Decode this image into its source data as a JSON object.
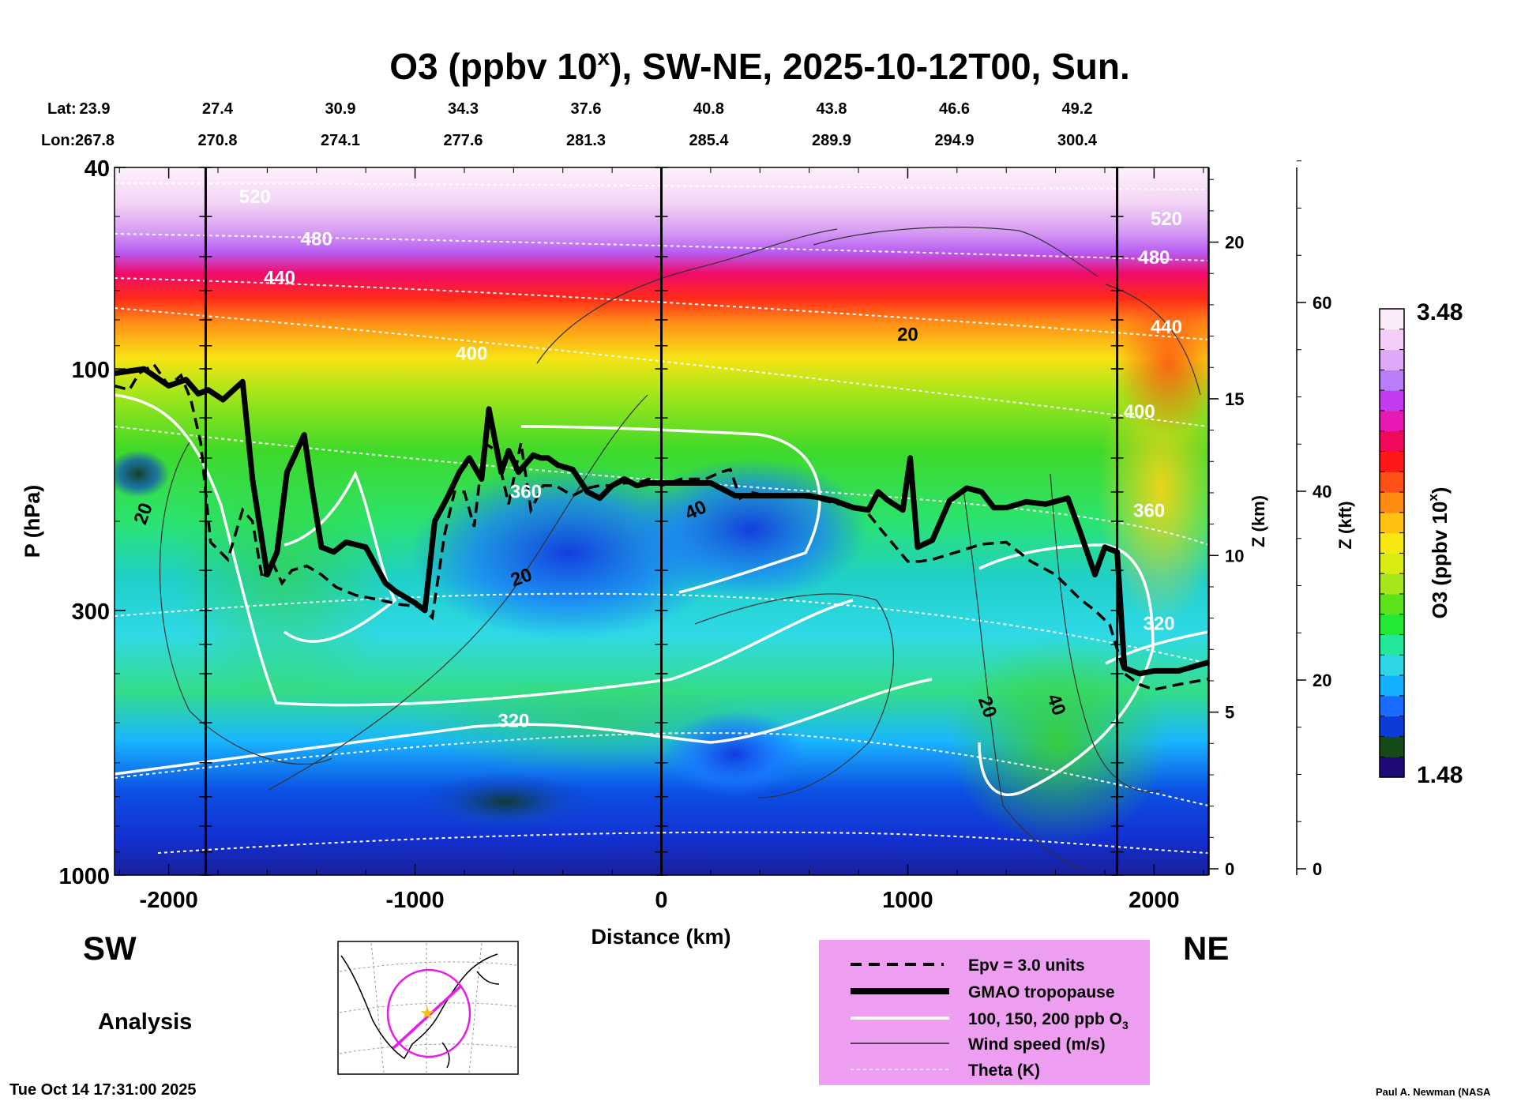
{
  "chart_data": {
    "type": "heatmap",
    "title": {
      "main": "O3 (ppbv 10",
      "sup": "x",
      "rest": "), SW-NE, 2025-10-12T00, Sun."
    },
    "lat_label": "Lat:",
    "lon_label": "Lon:",
    "lat_values": [
      "23.9",
      "27.4",
      "30.9",
      "34.3",
      "37.6",
      "40.8",
      "43.8",
      "46.6",
      "49.2"
    ],
    "lon_values": [
      "267.8",
      "270.8",
      "274.1",
      "277.6",
      "281.3",
      "285.4",
      "289.9",
      "294.9",
      "300.4"
    ],
    "x_axis": {
      "label": "Distance (km)",
      "range": [
        -2220,
        2220
      ],
      "ticks": [
        -2000,
        -1000,
        0,
        1000,
        2000
      ],
      "tick_labels": [
        "-2000",
        "-1000",
        "0",
        "1000",
        "2000"
      ],
      "minor_ticks": [
        -2200,
        -1800,
        -1600,
        -1400,
        -1200,
        -800,
        -600,
        -400,
        -200,
        200,
        400,
        600,
        800,
        1200,
        1400,
        1600,
        1800,
        2200
      ]
    },
    "y_axis": {
      "label": "P (hPa)",
      "scale": "log",
      "range": [
        1000,
        40
      ],
      "ticks": [
        40,
        100,
        300,
        1000
      ],
      "tick_labels": [
        "40",
        "100",
        "300",
        "1000"
      ]
    },
    "z_km_axis": {
      "label": "Z (km)",
      "ticks": [
        0,
        5,
        10,
        15,
        20
      ],
      "tick_labels": [
        "0",
        "5",
        "10",
        "15",
        "20"
      ]
    },
    "z_kft_axis": {
      "label": "Z (kft)",
      "ticks": [
        0,
        20,
        40,
        60
      ],
      "tick_labels": [
        "0",
        "20",
        "40",
        "60"
      ]
    },
    "vertical_lines_km": [
      -1850,
      0,
      1850
    ],
    "colorbar": {
      "label_main": "O3 (ppbv 10",
      "label_sup": "x",
      "label_rest": ")",
      "min": 1.48,
      "max": 3.48,
      "min_label": "1.48",
      "max_label": "3.48",
      "colors": [
        "#1f0a78",
        "#164a18",
        "#0b3cd8",
        "#1a6bff",
        "#12b0ff",
        "#2ed7e8",
        "#23e89a",
        "#23e834",
        "#5ce21a",
        "#a6e61a",
        "#d8ec12",
        "#f8e812",
        "#ffc012",
        "#ff8a12",
        "#ff5018",
        "#ff1818",
        "#f00a5a",
        "#e818b4",
        "#c43cf0",
        "#ba7cf8",
        "#e0a8f8",
        "#f4cef8",
        "#fcecfa"
      ]
    },
    "theta_labels": [
      {
        "text": "520",
        "km": -1650,
        "p": 47
      },
      {
        "text": "480",
        "km": -1400,
        "p": 57
      },
      {
        "text": "440",
        "km": -1550,
        "p": 68
      },
      {
        "text": "400",
        "km": -770,
        "p": 96
      },
      {
        "text": "360",
        "km": -550,
        "p": 180
      },
      {
        "text": "320",
        "km": -600,
        "p": 510
      },
      {
        "text": "520",
        "km": 2050,
        "p": 52
      },
      {
        "text": "480",
        "km": 2000,
        "p": 62
      },
      {
        "text": "440",
        "km": 2050,
        "p": 85
      },
      {
        "text": "400",
        "km": 1940,
        "p": 125
      },
      {
        "text": "360",
        "km": 1980,
        "p": 196
      },
      {
        "text": "320",
        "km": 2020,
        "p": 328
      }
    ],
    "wind_labels": [
      {
        "text": "20",
        "km": -2080,
        "p": 195,
        "angle": -70
      },
      {
        "text": "20",
        "km": -560,
        "p": 265,
        "angle": -20
      },
      {
        "text": "40",
        "km": 150,
        "p": 195,
        "angle": -25
      },
      {
        "text": "20",
        "km": 1000,
        "p": 88,
        "angle": 0
      },
      {
        "text": "20",
        "km": 1300,
        "p": 470,
        "angle": 70
      },
      {
        "text": "40",
        "km": 1580,
        "p": 465,
        "angle": 70
      }
    ],
    "tropopause": {
      "km": [
        -2220,
        -2100,
        -2000,
        -1930,
        -1880,
        -1840,
        -1780,
        -1700,
        -1660,
        -1600,
        -1560,
        -1520,
        -1450,
        -1420,
        -1380,
        -1330,
        -1280,
        -1200,
        -1120,
        -1080,
        -1000,
        -960,
        -920,
        -870,
        -820,
        -780,
        -730,
        -700,
        -650,
        -620,
        -580,
        -520,
        -490,
        -460,
        -420,
        -360,
        -300,
        -250,
        -200,
        -150,
        -100,
        -50,
        0,
        100,
        200,
        300,
        400,
        500,
        600,
        700,
        780,
        840,
        880,
        920,
        980,
        1010,
        1040,
        1100,
        1170,
        1240,
        1300,
        1350,
        1400,
        1450,
        1480,
        1560,
        1650,
        1700,
        1760,
        1800,
        1850,
        1880,
        1940,
        2000,
        2100,
        2220
      ],
      "p": [
        102,
        100,
        108,
        105,
        112,
        110,
        115,
        106,
        165,
        255,
        230,
        160,
        135,
        170,
        225,
        230,
        220,
        225,
        265,
        275,
        290,
        300,
        200,
        180,
        160,
        150,
        165,
        120,
        160,
        145,
        160,
        148,
        150,
        150,
        155,
        158,
        175,
        180,
        170,
        165,
        170,
        168,
        168,
        168,
        168,
        178,
        178,
        178,
        178,
        182,
        188,
        190,
        175,
        182,
        190,
        150,
        225,
        218,
        182,
        172,
        175,
        188,
        188,
        185,
        183,
        185,
        180,
        210,
        255,
        225,
        230,
        390,
        400,
        395,
        395,
        380
      ]
    },
    "epv": {
      "km": [
        -2220,
        -2160,
        -2120,
        -2060,
        -2000,
        -1950,
        -1910,
        -1870,
        -1830,
        -1760,
        -1700,
        -1660,
        -1620,
        -1580,
        -1540,
        -1500,
        -1440,
        -1380,
        -1320,
        -1240,
        -1160,
        -1060,
        -980,
        -930,
        -880,
        -840,
        -800,
        -760,
        -720,
        -670,
        -620,
        -570,
        -530,
        -480,
        -430,
        -360,
        -300,
        -250,
        -200,
        -150,
        -100,
        -50,
        0,
        80,
        180,
        240,
        280,
        320,
        360,
        420,
        520,
        620,
        720,
        820,
        900,
        1000,
        1050,
        1100,
        1200,
        1300,
        1400,
        1500,
        1600,
        1700,
        1760,
        1820,
        1880,
        1940,
        2000,
        2100,
        2220
      ],
      "p": [
        108,
        110,
        102,
        98,
        108,
        103,
        115,
        140,
        220,
        238,
        190,
        200,
        260,
        240,
        265,
        250,
        245,
        255,
        270,
        280,
        285,
        292,
        295,
        310,
        212,
        175,
        175,
        205,
        140,
        145,
        185,
        140,
        190,
        170,
        170,
        178,
        172,
        170,
        170,
        168,
        168,
        165,
        170,
        165,
        165,
        160,
        158,
        180,
        175,
        178,
        178,
        180,
        185,
        188,
        210,
        240,
        240,
        238,
        230,
        222,
        220,
        240,
        255,
        285,
        300,
        320,
        400,
        420,
        430,
        420,
        410
      ]
    }
  },
  "labels": {
    "sw": "SW",
    "ne": "NE",
    "analysis": "Analysis",
    "timestamp": "Tue Oct 14 17:31:00 2025",
    "credit": "Paul A. Newman (NASA"
  },
  "legend": {
    "bg_color": "#ee9ef0",
    "items": [
      {
        "label": "Epv = 3.0 units"
      },
      {
        "label": "GMAO tropopause"
      },
      {
        "label_main": "100, 150, 200 ppb O",
        "label_sub": "3"
      },
      {
        "label": "Wind speed (m/s)"
      },
      {
        "label": "Theta (K)"
      }
    ]
  },
  "colors": {
    "marker_star": "#f0c018",
    "map_track": "#e81ce8"
  }
}
